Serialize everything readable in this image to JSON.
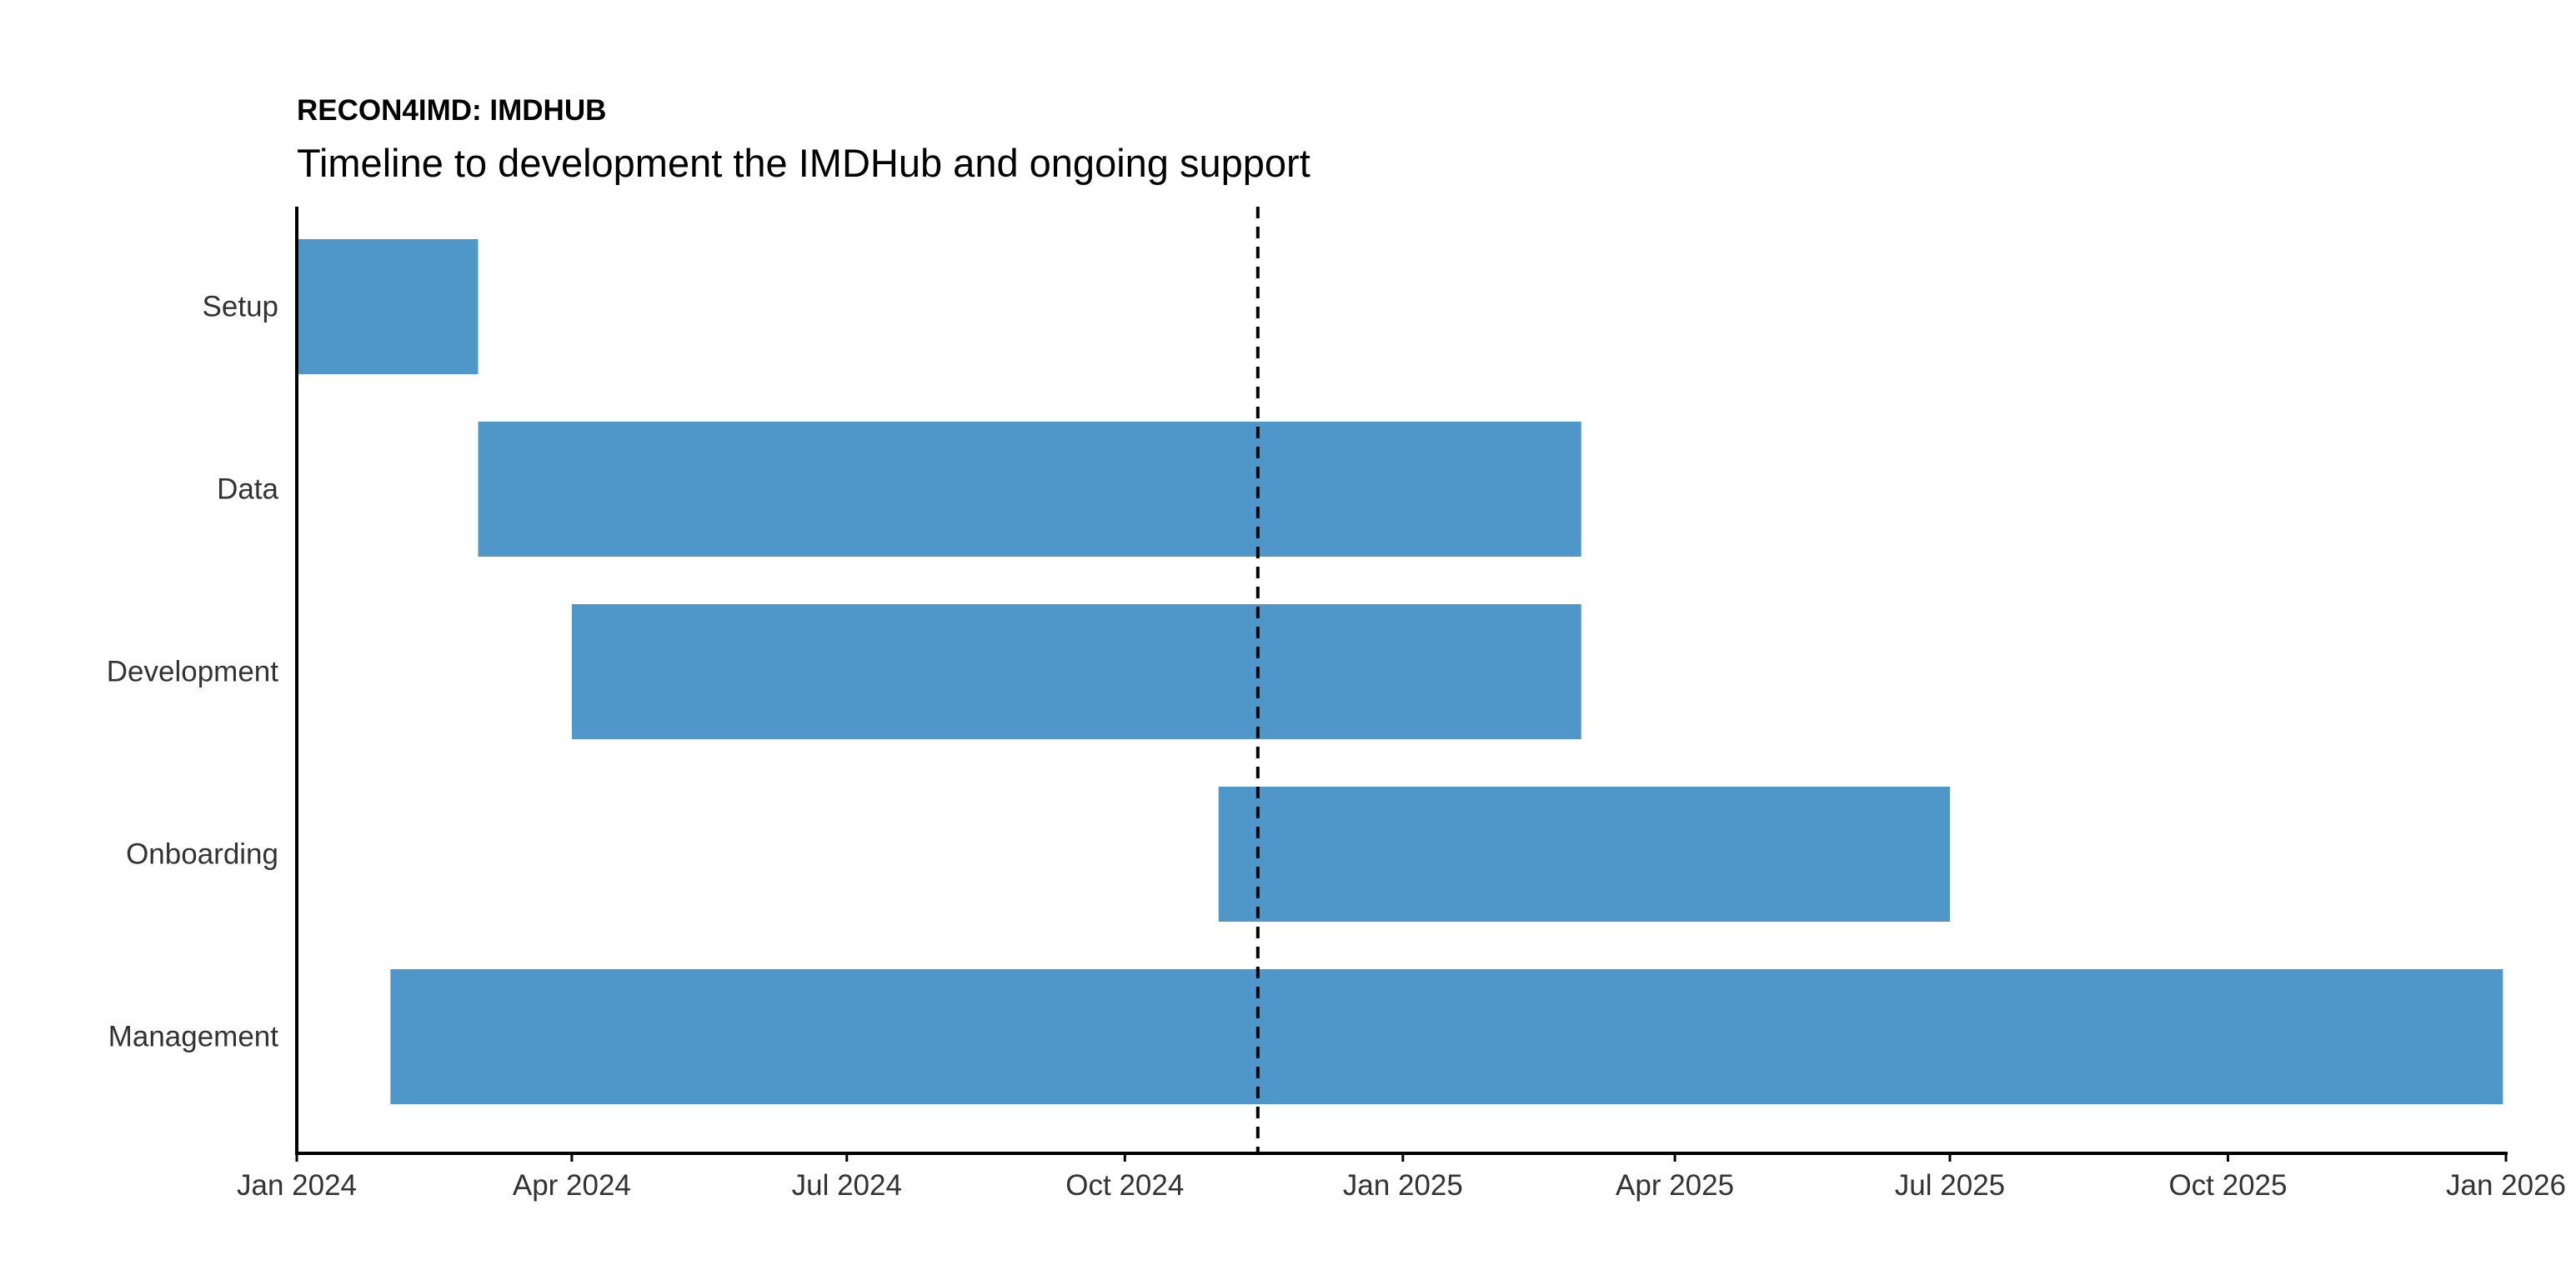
{
  "chart_data": {
    "type": "gantt",
    "title": "RECON4IMD: IMDHUB",
    "subtitle": "Timeline to development the IMDHub and ongoing support",
    "xlabel": "",
    "ylabel": "",
    "x_axis": {
      "type": "date",
      "range": [
        "2024-01-01",
        "2026-01-01"
      ],
      "ticks": [
        {
          "date": "2024-01-01",
          "label": "Jan 2024"
        },
        {
          "date": "2024-04-01",
          "label": "Apr 2024"
        },
        {
          "date": "2024-07-01",
          "label": "Jul 2024"
        },
        {
          "date": "2024-10-01",
          "label": "Oct 2024"
        },
        {
          "date": "2025-01-01",
          "label": "Jan 2025"
        },
        {
          "date": "2025-04-01",
          "label": "Apr 2025"
        },
        {
          "date": "2025-07-01",
          "label": "Jul 2025"
        },
        {
          "date": "2025-10-01",
          "label": "Oct 2025"
        },
        {
          "date": "2026-01-01",
          "label": "Jan 2026"
        }
      ]
    },
    "categories": [
      "Setup",
      "Data",
      "Development",
      "Onboarding",
      "Management"
    ],
    "tasks": [
      {
        "task": "Setup",
        "start": "2024-01-01",
        "end": "2024-03-01"
      },
      {
        "task": "Data",
        "start": "2024-03-01",
        "end": "2025-03-01"
      },
      {
        "task": "Development",
        "start": "2024-04-01",
        "end": "2025-03-01"
      },
      {
        "task": "Onboarding",
        "start": "2024-11-01",
        "end": "2025-07-01"
      },
      {
        "task": "Management",
        "start": "2024-02-01",
        "end": "2025-12-31"
      }
    ],
    "reference_line": {
      "date": "2024-11-14",
      "style": "dashed"
    },
    "bar_color": "#4F97C9",
    "grid": false,
    "legend": "none"
  }
}
